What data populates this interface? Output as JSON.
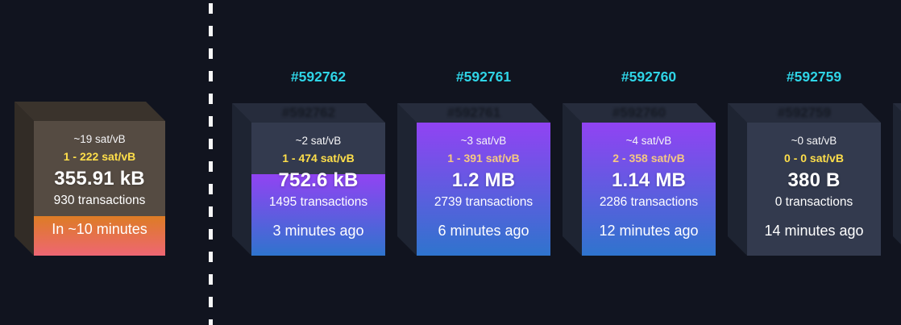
{
  "page": {
    "background": "#11141f",
    "accent_cyan": "#2fd4e6",
    "fee_yellow": "#ffdf4a"
  },
  "mempool": {
    "block": {
      "median_fee": "~19 sat/vB",
      "fee_range": "1 - 222 sat/vB",
      "fee_range_color": "#ffdf4a",
      "size": "355.91 kB",
      "transactions": "930 transactions",
      "eta": "In ~10 minutes",
      "fill": "29.5%"
    }
  },
  "mined": {
    "blocks": [
      {
        "height_label": "#592762",
        "median_fee": "~2 sat/vB",
        "fee_range": "1 - 474 sat/vB",
        "fee_range_color": "#ffdf4a",
        "size": "752.6 kB",
        "transactions": "1495 transactions",
        "time_ago": "3 minutes ago",
        "fill": "61%"
      },
      {
        "height_label": "#592761",
        "median_fee": "~3 sat/vB",
        "fee_range": "1 - 391 sat/vB",
        "fee_range_color": "#f6c882",
        "size": "1.2 MB",
        "transactions": "2739 transactions",
        "time_ago": "6 minutes ago",
        "fill": "100%"
      },
      {
        "height_label": "#592760",
        "median_fee": "~4 sat/vB",
        "fee_range": "2 - 358 sat/vB",
        "fee_range_color": "#f6c882",
        "size": "1.14 MB",
        "transactions": "2286 transactions",
        "time_ago": "12 minutes ago",
        "fill": "100%"
      },
      {
        "height_label": "#592759",
        "median_fee": "~0 sat/vB",
        "fee_range": "0 - 0 sat/vB",
        "fee_range_color": "#ffdf4a",
        "size": "380 B",
        "transactions": "0 transactions",
        "time_ago": "14 minutes ago",
        "fill": "0%"
      }
    ]
  }
}
